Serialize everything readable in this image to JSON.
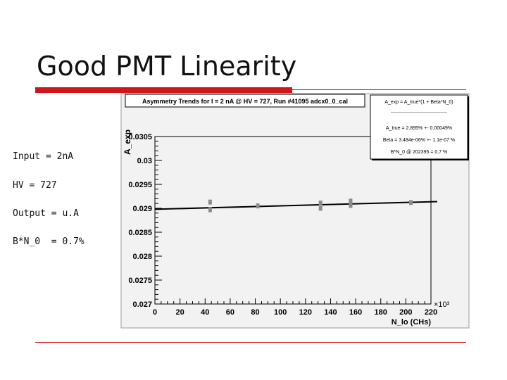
{
  "slide": {
    "title": "Good PMT Linearity",
    "notes": [
      "Input = 2nA",
      "HV = 727",
      "Output = u.A",
      "B*N_0  = 0.7%"
    ]
  },
  "chart_data": {
    "type": "scatter",
    "title": "Asymmetry Trends for I = 2 nA @ HV = 727, Run #41095 adcx0_0_cal",
    "xlabel": "N_lo (CHs)",
    "ylabel": "A_exp",
    "x_multiplier": "×10³",
    "xlim": [
      0,
      220
    ],
    "ylim": [
      0.027,
      0.0305
    ],
    "xticks": [
      "0",
      "20",
      "40",
      "60",
      "80",
      "100",
      "120",
      "140",
      "160",
      "180",
      "200",
      "220"
    ],
    "yticks": [
      "0.027",
      "0.0275",
      "0.028",
      "0.0285",
      "0.029",
      "0.0295",
      "0.03",
      "0.0305"
    ],
    "series": [
      {
        "x": [
          44,
          44,
          82,
          132,
          132,
          156,
          156,
          204
        ],
        "y": [
          0.02897,
          0.02913,
          0.02905,
          0.029,
          0.02911,
          0.02906,
          0.02915,
          0.02912
        ]
      }
    ],
    "fit": {
      "x": [
        0,
        225
      ],
      "y": [
        0.02898,
        0.02914
      ]
    },
    "fit_box": {
      "formula": "A_exp = A_true*(1 + Beta*N_0)",
      "divider": "----------------------------------------",
      "lines": [
        "A_true =    2.895%  +-  0.00049%",
        "Beta = 3.484e-06%   +-   1.1e-07 %",
        "B*N_0 @ 202395 =      0.7 %"
      ]
    }
  }
}
